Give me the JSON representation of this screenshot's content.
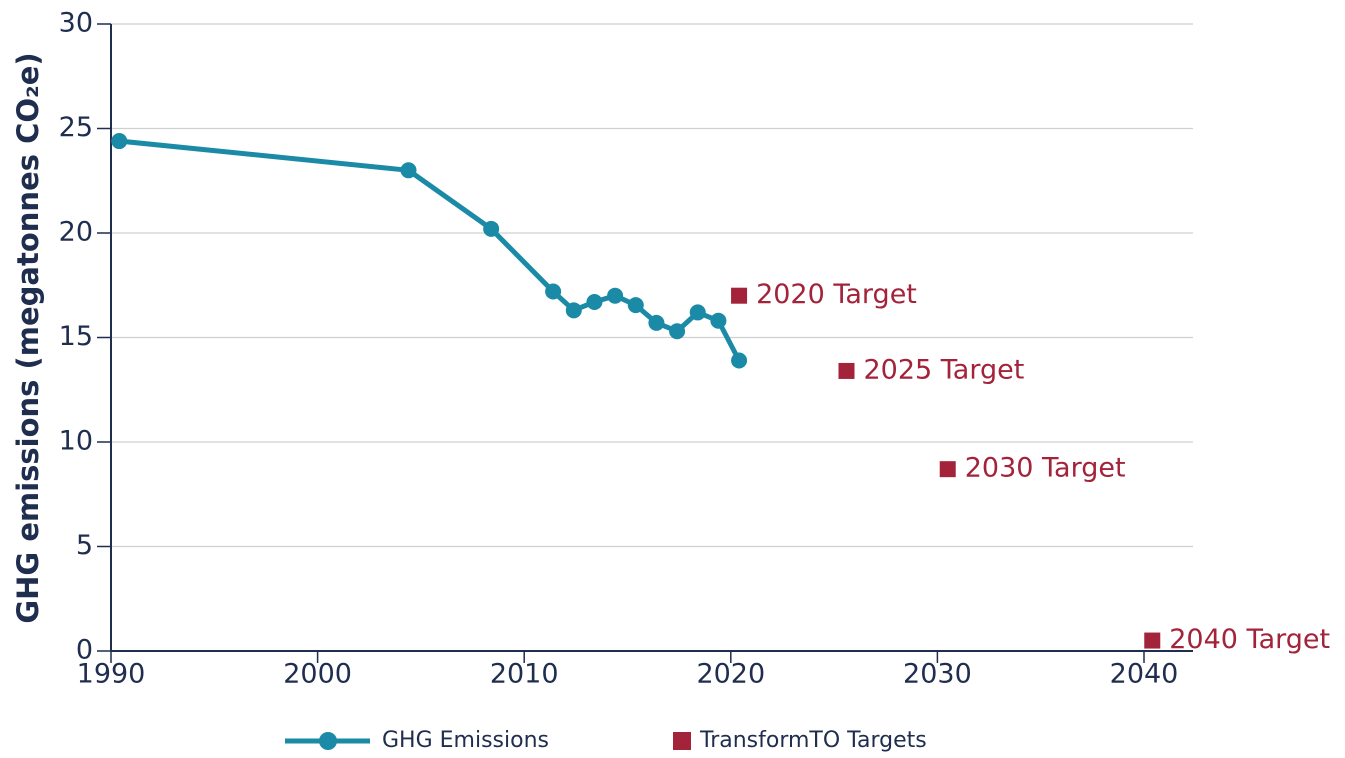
{
  "chart_data": {
    "type": "line",
    "y_label": "GHG emissions (megatonnes CO₂e)",
    "xlim": [
      1990,
      2040
    ],
    "xticks": [
      1990,
      2000,
      2010,
      2020,
      2030,
      2040
    ],
    "ylim": [
      0,
      30
    ],
    "yticks": [
      0,
      5,
      10,
      15,
      20,
      25,
      30
    ],
    "grid": true,
    "legend": "bottom",
    "series": [
      {
        "name": "GHG Emissions",
        "color": "#1a8aa6",
        "mode": "line",
        "x": [
          1990.4,
          2004.4,
          2008.4,
          2011.4,
          2012.4,
          2013.4,
          2014.4,
          2015.4,
          2016.4,
          2017.4,
          2018.4,
          2019.4,
          2020.4
        ],
        "values": [
          24.4,
          23.0,
          20.2,
          17.2,
          16.3,
          16.7,
          17.0,
          16.55,
          15.7,
          15.3,
          16.2,
          15.8,
          13.9
        ]
      },
      {
        "name": "TransformTO Targets",
        "color": "#a3233a",
        "mode": "markers",
        "x": [
          2020.4,
          2025.6,
          2030.5,
          2040.4
        ],
        "values": [
          17.0,
          13.4,
          8.7,
          0.5
        ],
        "point_labels": [
          "2020 Target",
          "2025 Target",
          "2030 Target",
          "2040 Target"
        ]
      }
    ]
  }
}
